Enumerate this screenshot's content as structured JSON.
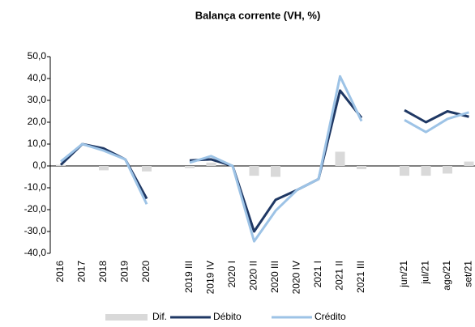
{
  "chart_data": {
    "type": "combo",
    "title": "Balança corrente (VH, %)",
    "categories": [
      "2016",
      "2017",
      "2018",
      "2019",
      "2020",
      null,
      "2019 III",
      "2019 IV",
      "2020 I",
      "2020 II",
      "2020 III",
      "2020 IV",
      "2021 I",
      "2021 II",
      "2021 III",
      null,
      "jun/21",
      "jul/21",
      "ago/21",
      "set/21"
    ],
    "series": [
      {
        "name": "Dif.",
        "kind": "bar",
        "color": "#d9d9d9",
        "values": [
          0.5,
          0,
          -2,
          0,
          -2.5,
          null,
          -1,
          1.5,
          0,
          -4.5,
          -5,
          0,
          0,
          6.5,
          -1.5,
          null,
          -4.5,
          -4.5,
          -3.5,
          2
        ]
      },
      {
        "name": "Débito",
        "kind": "line",
        "color": "#1f3864",
        "values": [
          0.5,
          10,
          8,
          3,
          -15,
          null,
          2.5,
          3,
          0,
          -30,
          -15.5,
          -11,
          -6,
          34.5,
          22,
          null,
          25.5,
          20,
          25,
          22.5
        ]
      },
      {
        "name": "Crédito",
        "kind": "line",
        "color": "#9dc3e6",
        "values": [
          2,
          10,
          7,
          3,
          -17.5,
          null,
          1.5,
          4.5,
          0,
          -34.5,
          -20.5,
          -11,
          -6,
          41,
          20.5,
          null,
          21,
          15.5,
          21.5,
          24.5
        ]
      }
    ],
    "ylim": [
      -40,
      50
    ],
    "yticks": [
      {
        "value": -40,
        "label": "-40,0"
      },
      {
        "value": -30,
        "label": "-30,0"
      },
      {
        "value": -20,
        "label": "-20,0"
      },
      {
        "value": -10,
        "label": "-10,0"
      },
      {
        "value": 0,
        "label": "0,0"
      },
      {
        "value": 10,
        "label": "10,0"
      },
      {
        "value": 20,
        "label": "20,0"
      },
      {
        "value": 30,
        "label": "30,0"
      },
      {
        "value": 40,
        "label": "40,0"
      },
      {
        "value": 50,
        "label": "50,0"
      }
    ],
    "legend": "bottom"
  }
}
